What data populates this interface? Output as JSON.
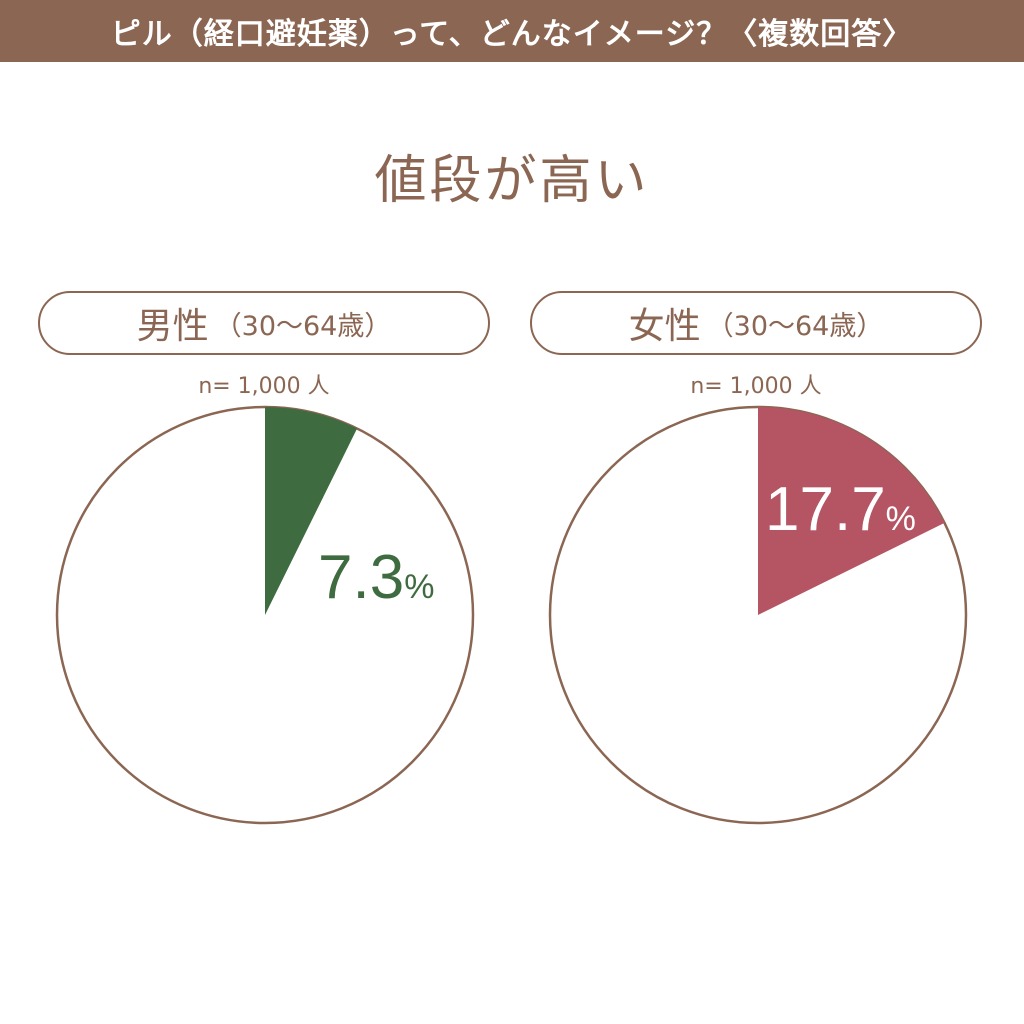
{
  "header": {
    "title": "ピル（経口避妊薬）って、どんなイメージ？〈複数回答〉"
  },
  "chart_title": "値段が高い",
  "chart_data": [
    {
      "type": "pie",
      "label": "男性",
      "label_sub": "（30〜64歳）",
      "n_label": "n= 1,000 人",
      "value": 7.3,
      "value_text": "7.3",
      "unit": "%",
      "color": "#3f6b40"
    },
    {
      "type": "pie",
      "label": "女性",
      "label_sub": "（30〜64歳）",
      "n_label": "n= 1,000 人",
      "value": 17.7,
      "value_text": "17.7",
      "unit": "%",
      "color": "#b55463"
    }
  ],
  "colors": {
    "brand": "#8b6653",
    "male": "#3f6b40",
    "female": "#b55463"
  }
}
